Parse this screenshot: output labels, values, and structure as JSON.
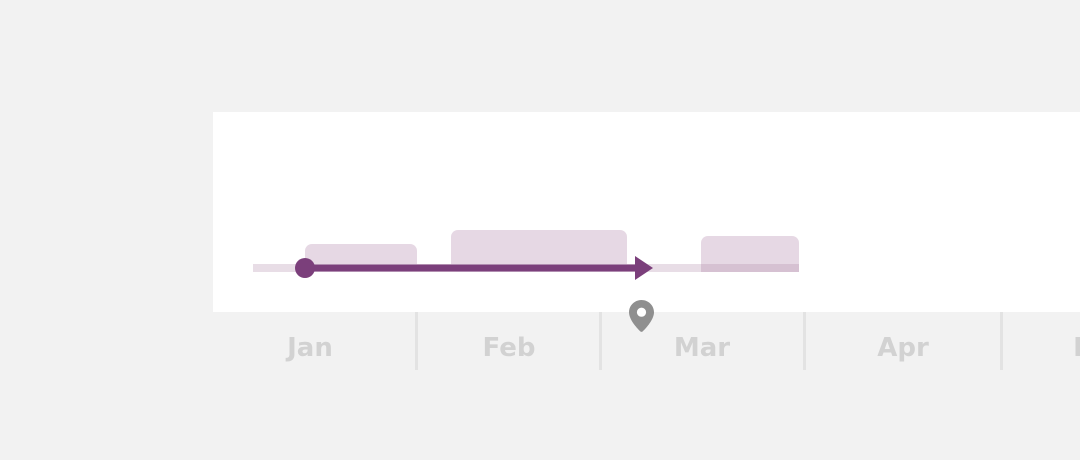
{
  "timeline": {
    "months": [
      {
        "label": "Jan"
      },
      {
        "label": "Feb"
      },
      {
        "label": "Mar"
      },
      {
        "label": "Apr"
      },
      {
        "label": "M"
      }
    ],
    "progress_arrow": {
      "start_label": "progress-start-dot",
      "end_label": "progress-arrow-head"
    },
    "today_marker_icon": "location-pin-icon",
    "colors": {
      "page_background": "#f2f2f2",
      "card_background": "#ffffff",
      "accent": "#7b3f7b",
      "block_fill": "#e6d8e4",
      "baseline_fill": "#e8dde6",
      "month_label": "#d2d2d2",
      "divider": "#e3e3e3",
      "pin": "#8f8f8f"
    }
  }
}
